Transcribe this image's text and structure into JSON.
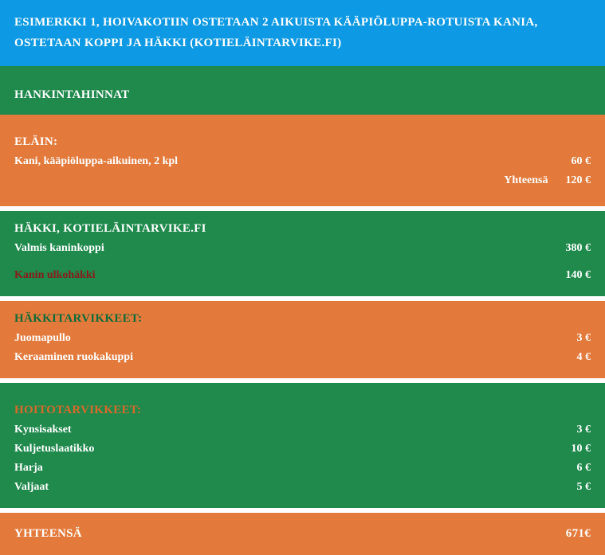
{
  "colors": {
    "blue": "#0d99e3",
    "green": "#1f8a4c",
    "orange": "#e37a3b",
    "darkRed": "#8a1a1a",
    "darkGreen": "#0f6b3a",
    "darkOrange": "#d96a2b",
    "white": "#ffffff"
  },
  "header": {
    "line1": "ESIMERKKI 1, HOIVAKOTIIN OSTETAAN 2 AIKUISTA KÄÄPIÖLUPPA-ROTUISTA KANIA,",
    "line2": "OSTETAAN KOPPI JA HÄKKI (KOTIELÄINTARVIKE.FI)"
  },
  "sections": {
    "acquisition": {
      "title": "HANKINTAHINNAT"
    },
    "animal": {
      "title": "ELÄIN:",
      "items": [
        {
          "label": "Kani, kääpiöluppa-aikuinen, 2 kpl",
          "value": "60 €"
        }
      ],
      "subtotal": {
        "label": "Yhteensä",
        "value": "120 €"
      }
    },
    "cage": {
      "title": "HÄKKI, KOTIELÄINTARVIKE.FI",
      "items": [
        {
          "label": "Valmis kaninkoppi",
          "value": "380 €"
        },
        {
          "label": "Kanin ulkohäkki",
          "value": "140 €"
        }
      ]
    },
    "cage_supplies": {
      "title": "HÄKKITARVIKKEET:",
      "items": [
        {
          "label": "Juomapullo",
          "value": "3 €"
        },
        {
          "label": "Keraaminen ruokakuppi",
          "value": "4 €"
        }
      ]
    },
    "care_supplies": {
      "title": "HOITOTARVIKKEET:",
      "items": [
        {
          "label": "Kynsisakset",
          "value": "3 €"
        },
        {
          "label": "Kuljetuslaatikko",
          "value": "10 €"
        },
        {
          "label": "Harja",
          "value": "6 €"
        },
        {
          "label": "Valjaat",
          "value": "5 €"
        }
      ]
    },
    "total": {
      "label": "YHTEENSÄ",
      "value": "671€"
    }
  }
}
